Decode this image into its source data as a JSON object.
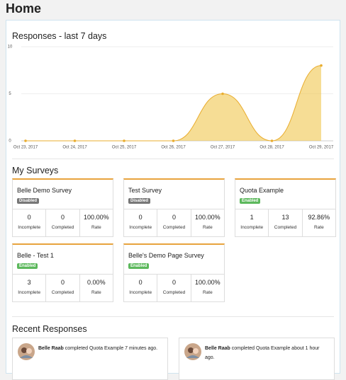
{
  "header": {
    "title": "Home"
  },
  "chart_data": {
    "type": "area",
    "title": "Responses - last 7 days",
    "x": [
      "Oct 23, 2017",
      "Oct 24, 2017",
      "Oct 25, 2017",
      "Oct 26, 2017",
      "Oct 27, 2017",
      "Oct 28, 2017",
      "Oct 29, 2017"
    ],
    "values": [
      0,
      0,
      0,
      0,
      5,
      0,
      8
    ],
    "color": "#f0c64e",
    "ylim": [
      0,
      10
    ],
    "yticks": [
      0,
      5,
      10
    ],
    "grid": true
  },
  "surveys": {
    "title": "My Surveys",
    "stat_labels": [
      "Incomplete",
      "Completed",
      "Rate"
    ],
    "items": [
      {
        "name": "Belle Demo Survey",
        "status": "Disabled",
        "status_color": "#777777",
        "stats": [
          "0",
          "0",
          "100.00%"
        ]
      },
      {
        "name": "Test Survey",
        "status": "Disabled",
        "status_color": "#777777",
        "stats": [
          "0",
          "0",
          "100.00%"
        ]
      },
      {
        "name": "Quota Example",
        "status": "Enabled",
        "status_color": "#5cb85c",
        "stats": [
          "1",
          "13",
          "92.86%"
        ]
      },
      {
        "name": "Belle - Test 1",
        "status": "Enabled",
        "status_color": "#5cb85c",
        "stats": [
          "3",
          "0",
          "0.00%"
        ]
      },
      {
        "name": "Belle's Demo Page Survey",
        "status": "Enabled",
        "status_color": "#5cb85c",
        "stats": [
          "0",
          "0",
          "100.00%"
        ]
      }
    ]
  },
  "recent": {
    "title": "Recent Responses",
    "items": [
      {
        "user": "Belle Raab",
        "text": "completed Quota Example 7 minutes ago."
      },
      {
        "user": "Belle Raab",
        "text": "completed Quota Example about 1 hour ago."
      }
    ]
  }
}
